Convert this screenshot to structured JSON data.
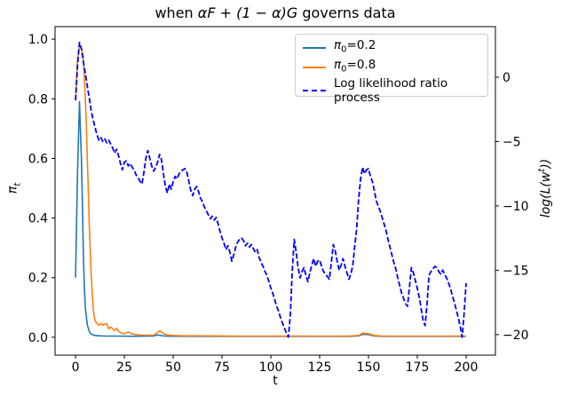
{
  "title": {
    "pre": "when ",
    "math": "αF + (1 − α)G",
    "post": " governs data"
  },
  "axes": {
    "x": {
      "label": "t"
    },
    "y_left": {
      "label_symbol": "π",
      "label_sub": "t"
    },
    "y_right": {
      "label_pre": "log(L(w",
      "label_sup": "t",
      "label_post": "))"
    }
  },
  "legend": {
    "items": [
      {
        "sym": "π",
        "sub": "0",
        "rest": "=0.2",
        "color": "#1f77b4",
        "style": "solid"
      },
      {
        "sym": "π",
        "sub": "0",
        "rest": "=0.8",
        "color": "#ff7f0e",
        "style": "solid"
      },
      {
        "rest": "Log likelihood ratio process",
        "color": "#0000ff",
        "style": "dashed"
      }
    ]
  },
  "chart_data": {
    "type": "line",
    "title": "when αF + (1 − α)G governs data",
    "xlabel": "t",
    "ylabel_left": "π_t",
    "ylabel_right": "log(L(w^t))",
    "grid": false,
    "legend_position": "upper right",
    "xlim": [
      -10.5,
      215
    ],
    "ylim_left": [
      -0.06,
      1.042
    ],
    "ylim_right": [
      -21.6,
      3.93
    ],
    "x_ticks": {
      "values": [
        0,
        25,
        50,
        75,
        100,
        125,
        150,
        175,
        200
      ],
      "labels": [
        "0",
        "25",
        "50",
        "75",
        "100",
        "125",
        "150",
        "175",
        "200"
      ]
    },
    "y_left_ticks": {
      "values": [
        0.0,
        0.2,
        0.4,
        0.6,
        0.8,
        1.0
      ],
      "labels": [
        "0.0",
        "0.2",
        "0.4",
        "0.6",
        "0.8",
        "1.0"
      ]
    },
    "y_right_ticks": {
      "values": [
        0,
        -5,
        -10,
        -15,
        -20
      ],
      "labels": [
        "0",
        "−5",
        "−10",
        "−15",
        "−20"
      ]
    },
    "series": [
      {
        "name": "π0=0.2",
        "axis": "left",
        "style": "solid",
        "color": "#1f77b4",
        "points": [
          [
            0,
            0.2
          ],
          [
            1,
            0.55
          ],
          [
            2,
            0.79
          ],
          [
            3,
            0.6
          ],
          [
            3.5,
            0.45
          ],
          [
            4,
            0.28
          ],
          [
            4.5,
            0.17
          ],
          [
            5,
            0.1
          ],
          [
            6,
            0.042
          ],
          [
            7,
            0.02
          ],
          [
            8,
            0.011
          ],
          [
            9,
            0.008
          ],
          [
            10,
            0.006
          ],
          [
            12,
            0.005
          ],
          [
            15,
            0.004
          ],
          [
            20,
            0.004
          ],
          [
            30,
            0.0035
          ],
          [
            40,
            0.004
          ],
          [
            42,
            0.008
          ],
          [
            44,
            0.0055
          ],
          [
            46,
            0.004
          ],
          [
            50,
            0.0035
          ],
          [
            70,
            0.003
          ],
          [
            100,
            0.003
          ],
          [
            140,
            0.003
          ],
          [
            145,
            0.0045
          ],
          [
            147,
            0.01
          ],
          [
            150,
            0.009
          ],
          [
            153,
            0.004
          ],
          [
            158,
            0.003
          ],
          [
            200,
            0.003
          ]
        ]
      },
      {
        "name": "π0=0.8",
        "axis": "left",
        "style": "solid",
        "color": "#ff7f0e",
        "points": [
          [
            0,
            0.8
          ],
          [
            1,
            0.93
          ],
          [
            2,
            0.982
          ],
          [
            3,
            0.97
          ],
          [
            4,
            0.94
          ],
          [
            5,
            0.8
          ],
          [
            5.5,
            0.72
          ],
          [
            6,
            0.6
          ],
          [
            6.5,
            0.5
          ],
          [
            7,
            0.38
          ],
          [
            7.5,
            0.29
          ],
          [
            8,
            0.21
          ],
          [
            8.5,
            0.15
          ],
          [
            9,
            0.1
          ],
          [
            9.5,
            0.072
          ],
          [
            10,
            0.055
          ],
          [
            11,
            0.046
          ],
          [
            12,
            0.04
          ],
          [
            13,
            0.046
          ],
          [
            14,
            0.04
          ],
          [
            15,
            0.044
          ],
          [
            16,
            0.046
          ],
          [
            17,
            0.028
          ],
          [
            18,
            0.034
          ],
          [
            19,
            0.03
          ],
          [
            20,
            0.022
          ],
          [
            21,
            0.03
          ],
          [
            22,
            0.02
          ],
          [
            23,
            0.016
          ],
          [
            24,
            0.013
          ],
          [
            25,
            0.012
          ],
          [
            27,
            0.018
          ],
          [
            28,
            0.014
          ],
          [
            30,
            0.01
          ],
          [
            32,
            0.008
          ],
          [
            35,
            0.007
          ],
          [
            40,
            0.007
          ],
          [
            42,
            0.016
          ],
          [
            43,
            0.022
          ],
          [
            44,
            0.018
          ],
          [
            45,
            0.012
          ],
          [
            47,
            0.008
          ],
          [
            50,
            0.006
          ],
          [
            55,
            0.005
          ],
          [
            60,
            0.005
          ],
          [
            80,
            0.004
          ],
          [
            100,
            0.004
          ],
          [
            120,
            0.004
          ],
          [
            140,
            0.004
          ],
          [
            145,
            0.006
          ],
          [
            147,
            0.014
          ],
          [
            150,
            0.012
          ],
          [
            153,
            0.006
          ],
          [
            157,
            0.004
          ],
          [
            170,
            0.004
          ],
          [
            200,
            0.004
          ]
        ]
      },
      {
        "name": "Log likelihood ratio process",
        "axis": "right",
        "style": "dashed",
        "color": "#0000ff",
        "points": [
          [
            0,
            -1.8
          ],
          [
            1,
            0.9
          ],
          [
            2,
            2.7
          ],
          [
            3,
            2.2
          ],
          [
            4,
            1.2
          ],
          [
            5,
            0.3
          ],
          [
            6,
            -0.7
          ],
          [
            7,
            -1.6
          ],
          [
            8,
            -2.6
          ],
          [
            9,
            -3.3
          ],
          [
            10,
            -3.9
          ],
          [
            11,
            -4.5
          ],
          [
            12,
            -4.9
          ],
          [
            13,
            -4.7
          ],
          [
            14,
            -5.0
          ],
          [
            15,
            -4.8
          ],
          [
            16,
            -5.1
          ],
          [
            17,
            -4.9
          ],
          [
            18,
            -5.2
          ],
          [
            19,
            -5.5
          ],
          [
            20,
            -5.9
          ],
          [
            21,
            -5.6
          ],
          [
            22,
            -6.1
          ],
          [
            23,
            -6.7
          ],
          [
            24,
            -7.2
          ],
          [
            25,
            -6.6
          ],
          [
            26,
            -6.5
          ],
          [
            27,
            -6.9
          ],
          [
            28,
            -6.7
          ],
          [
            29,
            -7.0
          ],
          [
            30,
            -7.2
          ],
          [
            31,
            -7.6
          ],
          [
            32,
            -7.8
          ],
          [
            33,
            -8.1
          ],
          [
            34,
            -8.3
          ],
          [
            35,
            -7.4
          ],
          [
            36,
            -6.3
          ],
          [
            37,
            -5.7
          ],
          [
            38,
            -6.3
          ],
          [
            39,
            -6.9
          ],
          [
            40,
            -7.3
          ],
          [
            41,
            -7.0
          ],
          [
            42,
            -6.6
          ],
          [
            43,
            -6.0
          ],
          [
            44,
            -6.4
          ],
          [
            45,
            -7.5
          ],
          [
            46,
            -8.5
          ],
          [
            47,
            -9.0
          ],
          [
            48,
            -8.3
          ],
          [
            49,
            -8.7
          ],
          [
            50,
            -8.1
          ],
          [
            51,
            -7.7
          ],
          [
            52,
            -7.9
          ],
          [
            53,
            -7.5
          ],
          [
            54,
            -7.3
          ],
          [
            55,
            -7.2
          ],
          [
            56,
            -7.1
          ],
          [
            57,
            -7.4
          ],
          [
            58,
            -8.1
          ],
          [
            59,
            -8.8
          ],
          [
            60,
            -9.2
          ],
          [
            61,
            -8.7
          ],
          [
            62,
            -8.5
          ],
          [
            63,
            -8.9
          ],
          [
            64,
            -9.4
          ],
          [
            65,
            -9.7
          ],
          [
            66,
            -10.1
          ],
          [
            67,
            -10.4
          ],
          [
            68,
            -10.7
          ],
          [
            69,
            -11.0
          ],
          [
            70,
            -10.8
          ],
          [
            71,
            -11.1
          ],
          [
            72,
            -10.9
          ],
          [
            73,
            -11.4
          ],
          [
            74,
            -12.0
          ],
          [
            75,
            -12.5
          ],
          [
            76,
            -12.9
          ],
          [
            77,
            -13.4
          ],
          [
            78,
            -13.1
          ],
          [
            79,
            -13.6
          ],
          [
            80,
            -14.3
          ],
          [
            81,
            -13.8
          ],
          [
            82,
            -13.2
          ],
          [
            83,
            -12.8
          ],
          [
            84,
            -12.6
          ],
          [
            85,
            -12.5
          ],
          [
            86,
            -12.7
          ],
          [
            87,
            -13.1
          ],
          [
            88,
            -12.9
          ],
          [
            89,
            -13.2
          ],
          [
            90,
            -13.0
          ],
          [
            91,
            -13.3
          ],
          [
            92,
            -13.6
          ],
          [
            93,
            -13.4
          ],
          [
            94,
            -14.0
          ],
          [
            95,
            -14.4
          ],
          [
            96,
            -14.7
          ],
          [
            97,
            -15.1
          ],
          [
            98,
            -15.4
          ],
          [
            99,
            -15.9
          ],
          [
            100,
            -16.4
          ],
          [
            101,
            -16.8
          ],
          [
            102,
            -17.3
          ],
          [
            103,
            -17.8
          ],
          [
            104,
            -18.2
          ],
          [
            105,
            -18.7
          ],
          [
            106,
            -19.1
          ],
          [
            107,
            -19.5
          ],
          [
            108,
            -19.9
          ],
          [
            109,
            -20.2
          ],
          [
            110,
            -18.5
          ],
          [
            111,
            -15.0
          ],
          [
            112,
            -12.6
          ],
          [
            113,
            -13.6
          ],
          [
            114,
            -14.8
          ],
          [
            115,
            -15.6
          ],
          [
            116,
            -15.1
          ],
          [
            117,
            -14.8
          ],
          [
            118,
            -15.4
          ],
          [
            119,
            -15.9
          ],
          [
            120,
            -15.2
          ],
          [
            121,
            -14.6
          ],
          [
            122,
            -14.1
          ],
          [
            123,
            -14.7
          ],
          [
            124,
            -14.3
          ],
          [
            125,
            -14.2
          ],
          [
            126,
            -14.7
          ],
          [
            127,
            -15.1
          ],
          [
            128,
            -15.3
          ],
          [
            129,
            -15.5
          ],
          [
            130,
            -15.7
          ],
          [
            131,
            -14.4
          ],
          [
            132,
            -13.0
          ],
          [
            133,
            -13.5
          ],
          [
            134,
            -14.3
          ],
          [
            135,
            -15.0
          ],
          [
            136,
            -14.6
          ],
          [
            137,
            -14.1
          ],
          [
            138,
            -14.7
          ],
          [
            139,
            -15.2
          ],
          [
            140,
            -15.7
          ],
          [
            141,
            -15.3
          ],
          [
            142,
            -14.6
          ],
          [
            143,
            -13.1
          ],
          [
            144,
            -11.7
          ],
          [
            145,
            -9.4
          ],
          [
            146,
            -7.9
          ],
          [
            147,
            -7.0
          ],
          [
            148,
            -7.5
          ],
          [
            149,
            -7.2
          ],
          [
            150,
            -7.1
          ],
          [
            151,
            -7.7
          ],
          [
            152,
            -8.1
          ],
          [
            153,
            -8.8
          ],
          [
            154,
            -9.6
          ],
          [
            155,
            -10.0
          ],
          [
            156,
            -10.4
          ],
          [
            157,
            -10.9
          ],
          [
            158,
            -11.4
          ],
          [
            159,
            -11.9
          ],
          [
            160,
            -12.6
          ],
          [
            161,
            -13.2
          ],
          [
            162,
            -13.8
          ],
          [
            163,
            -14.4
          ],
          [
            164,
            -14.9
          ],
          [
            165,
            -15.6
          ],
          [
            166,
            -16.2
          ],
          [
            167,
            -16.8
          ],
          [
            168,
            -17.2
          ],
          [
            169,
            -17.6
          ],
          [
            170,
            -17.8
          ],
          [
            171,
            -16.3
          ],
          [
            172,
            -14.8
          ],
          [
            173,
            -15.2
          ],
          [
            174,
            -15.8
          ],
          [
            175,
            -16.4
          ],
          [
            176,
            -17.1
          ],
          [
            177,
            -18.0
          ],
          [
            178,
            -18.9
          ],
          [
            179,
            -19.3
          ],
          [
            180,
            -17.6
          ],
          [
            181,
            -15.4
          ],
          [
            182,
            -15.1
          ],
          [
            183,
            -14.9
          ],
          [
            184,
            -14.7
          ],
          [
            185,
            -14.8
          ],
          [
            186,
            -15.1
          ],
          [
            187,
            -15.3
          ],
          [
            188,
            -15.0
          ],
          [
            189,
            -15.3
          ],
          [
            190,
            -15.6
          ],
          [
            191,
            -16.0
          ],
          [
            192,
            -16.4
          ],
          [
            193,
            -17.0
          ],
          [
            194,
            -17.5
          ],
          [
            195,
            -18.1
          ],
          [
            196,
            -18.7
          ],
          [
            197,
            -19.4
          ],
          [
            198,
            -20.2
          ],
          [
            199,
            -18.3
          ],
          [
            200,
            -16.0
          ]
        ]
      }
    ]
  }
}
